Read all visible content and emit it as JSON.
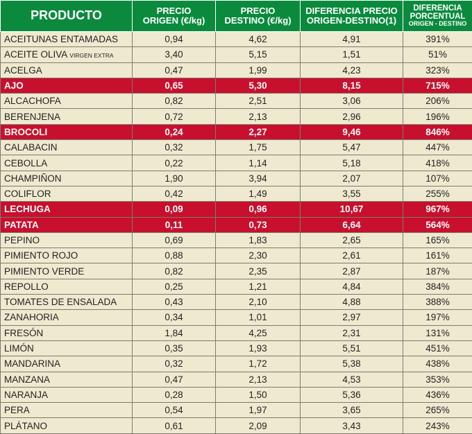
{
  "header": {
    "producto": "PRODUCTO",
    "precio_origen": [
      "PRECIO",
      "ORIGEN (€/kg)"
    ],
    "precio_destino": [
      "PRECIO",
      "DESTINO (€/kg)"
    ],
    "diferencia_precio": [
      "DIFERENCIA PRECIO",
      "ORIGEN-DESTINO(1)"
    ],
    "diferencia_porcentual": [
      "DIFERENCIA",
      "PORCENTUAL",
      "ORIGEN - DESTINO"
    ]
  },
  "colors": {
    "header": "#0b8a3e",
    "highlight": "#c8102e",
    "row": "#efe9cf"
  },
  "rows": [
    {
      "name": "ACEITUNAS ENTAMADAS",
      "sub": "",
      "origen": "0,94",
      "destino": "4,62",
      "dif": "4,91",
      "pct": "391%",
      "hl": false
    },
    {
      "name": "ACEITE OLIVA ",
      "sub": "VIRGEN EXTRA",
      "origen": "3,40",
      "destino": "5,15",
      "dif": "1,51",
      "pct": "51%",
      "hl": false
    },
    {
      "name": "ACELGA",
      "sub": "",
      "origen": "0,47",
      "destino": "1,99",
      "dif": "4,23",
      "pct": "323%",
      "hl": false
    },
    {
      "name": "AJO",
      "sub": "",
      "origen": "0,65",
      "destino": "5,30",
      "dif": "8,15",
      "pct": "715%",
      "hl": true
    },
    {
      "name": "ALCACHOFA",
      "sub": "",
      "origen": "0,82",
      "destino": "2,51",
      "dif": "3,06",
      "pct": "206%",
      "hl": false
    },
    {
      "name": "BERENJENA",
      "sub": "",
      "origen": "0,72",
      "destino": "2,13",
      "dif": "2,96",
      "pct": "196%",
      "hl": false
    },
    {
      "name": "BROCOLI",
      "sub": "",
      "origen": "0,24",
      "destino": "2,27",
      "dif": "9,46",
      "pct": "846%",
      "hl": true
    },
    {
      "name": "CALABACIN",
      "sub": "",
      "origen": "0,32",
      "destino": "1,75",
      "dif": "5,47",
      "pct": "447%",
      "hl": false
    },
    {
      "name": "CEBOLLA",
      "sub": "",
      "origen": "0,22",
      "destino": "1,14",
      "dif": "5,18",
      "pct": "418%",
      "hl": false
    },
    {
      "name": "CHAMPIÑON",
      "sub": "",
      "origen": "1,90",
      "destino": "3,94",
      "dif": "2,07",
      "pct": "107%",
      "hl": false
    },
    {
      "name": "COLIFLOR",
      "sub": "",
      "origen": "0,42",
      "destino": "1,49",
      "dif": "3,55",
      "pct": "255%",
      "hl": false
    },
    {
      "name": "LECHUGA",
      "sub": "",
      "origen": "0,09",
      "destino": "0,96",
      "dif": "10,67",
      "pct": "967%",
      "hl": true
    },
    {
      "name": "PATATA",
      "sub": "",
      "origen": "0,11",
      "destino": "0,73",
      "dif": "6,64",
      "pct": "564%",
      "hl": true
    },
    {
      "name": "PEPINO",
      "sub": "",
      "origen": "0,69",
      "destino": "1,83",
      "dif": "2,65",
      "pct": "165%",
      "hl": false
    },
    {
      "name": "PIMIENTO ROJO",
      "sub": "",
      "origen": "0,88",
      "destino": "2,30",
      "dif": "2,61",
      "pct": "161%",
      "hl": false
    },
    {
      "name": "PIMIENTO VERDE",
      "sub": "",
      "origen": "0,82",
      "destino": "2,35",
      "dif": "2,87",
      "pct": "187%",
      "hl": false
    },
    {
      "name": "REPOLLO",
      "sub": "",
      "origen": "0,25",
      "destino": "1,21",
      "dif": "4,84",
      "pct": "384%",
      "hl": false
    },
    {
      "name": "TOMATES DE ENSALADA",
      "sub": "",
      "origen": "0,43",
      "destino": "2,10",
      "dif": "4,88",
      "pct": "388%",
      "hl": false
    },
    {
      "name": "ZANAHORIA",
      "sub": "",
      "origen": "0,34",
      "destino": "1,01",
      "dif": "2,97",
      "pct": "197%",
      "hl": false
    },
    {
      "name": "FRESÓN",
      "sub": "",
      "origen": "1,84",
      "destino": "4,25",
      "dif": "2,31",
      "pct": "131%",
      "hl": false
    },
    {
      "name": "LIMÓN",
      "sub": "",
      "origen": "0,35",
      "destino": "1,93",
      "dif": "5,51",
      "pct": "451%",
      "hl": false
    },
    {
      "name": "MANDARINA",
      "sub": "",
      "origen": "0,32",
      "destino": "1,72",
      "dif": "5,38",
      "pct": "438%",
      "hl": false
    },
    {
      "name": "MANZANA",
      "sub": "",
      "origen": "0,47",
      "destino": "2,13",
      "dif": "4,53",
      "pct": "353%",
      "hl": false
    },
    {
      "name": "NARANJA",
      "sub": "",
      "origen": "0,28",
      "destino": "1,50",
      "dif": "5,36",
      "pct": "436%",
      "hl": false
    },
    {
      "name": "PERA",
      "sub": "",
      "origen": "0,54",
      "destino": "1,97",
      "dif": "3,65",
      "pct": "265%",
      "hl": false
    },
    {
      "name": "PLÁTANO",
      "sub": "",
      "origen": "0,61",
      "destino": "2,09",
      "dif": "3,43",
      "pct": "243%",
      "hl": false
    }
  ]
}
